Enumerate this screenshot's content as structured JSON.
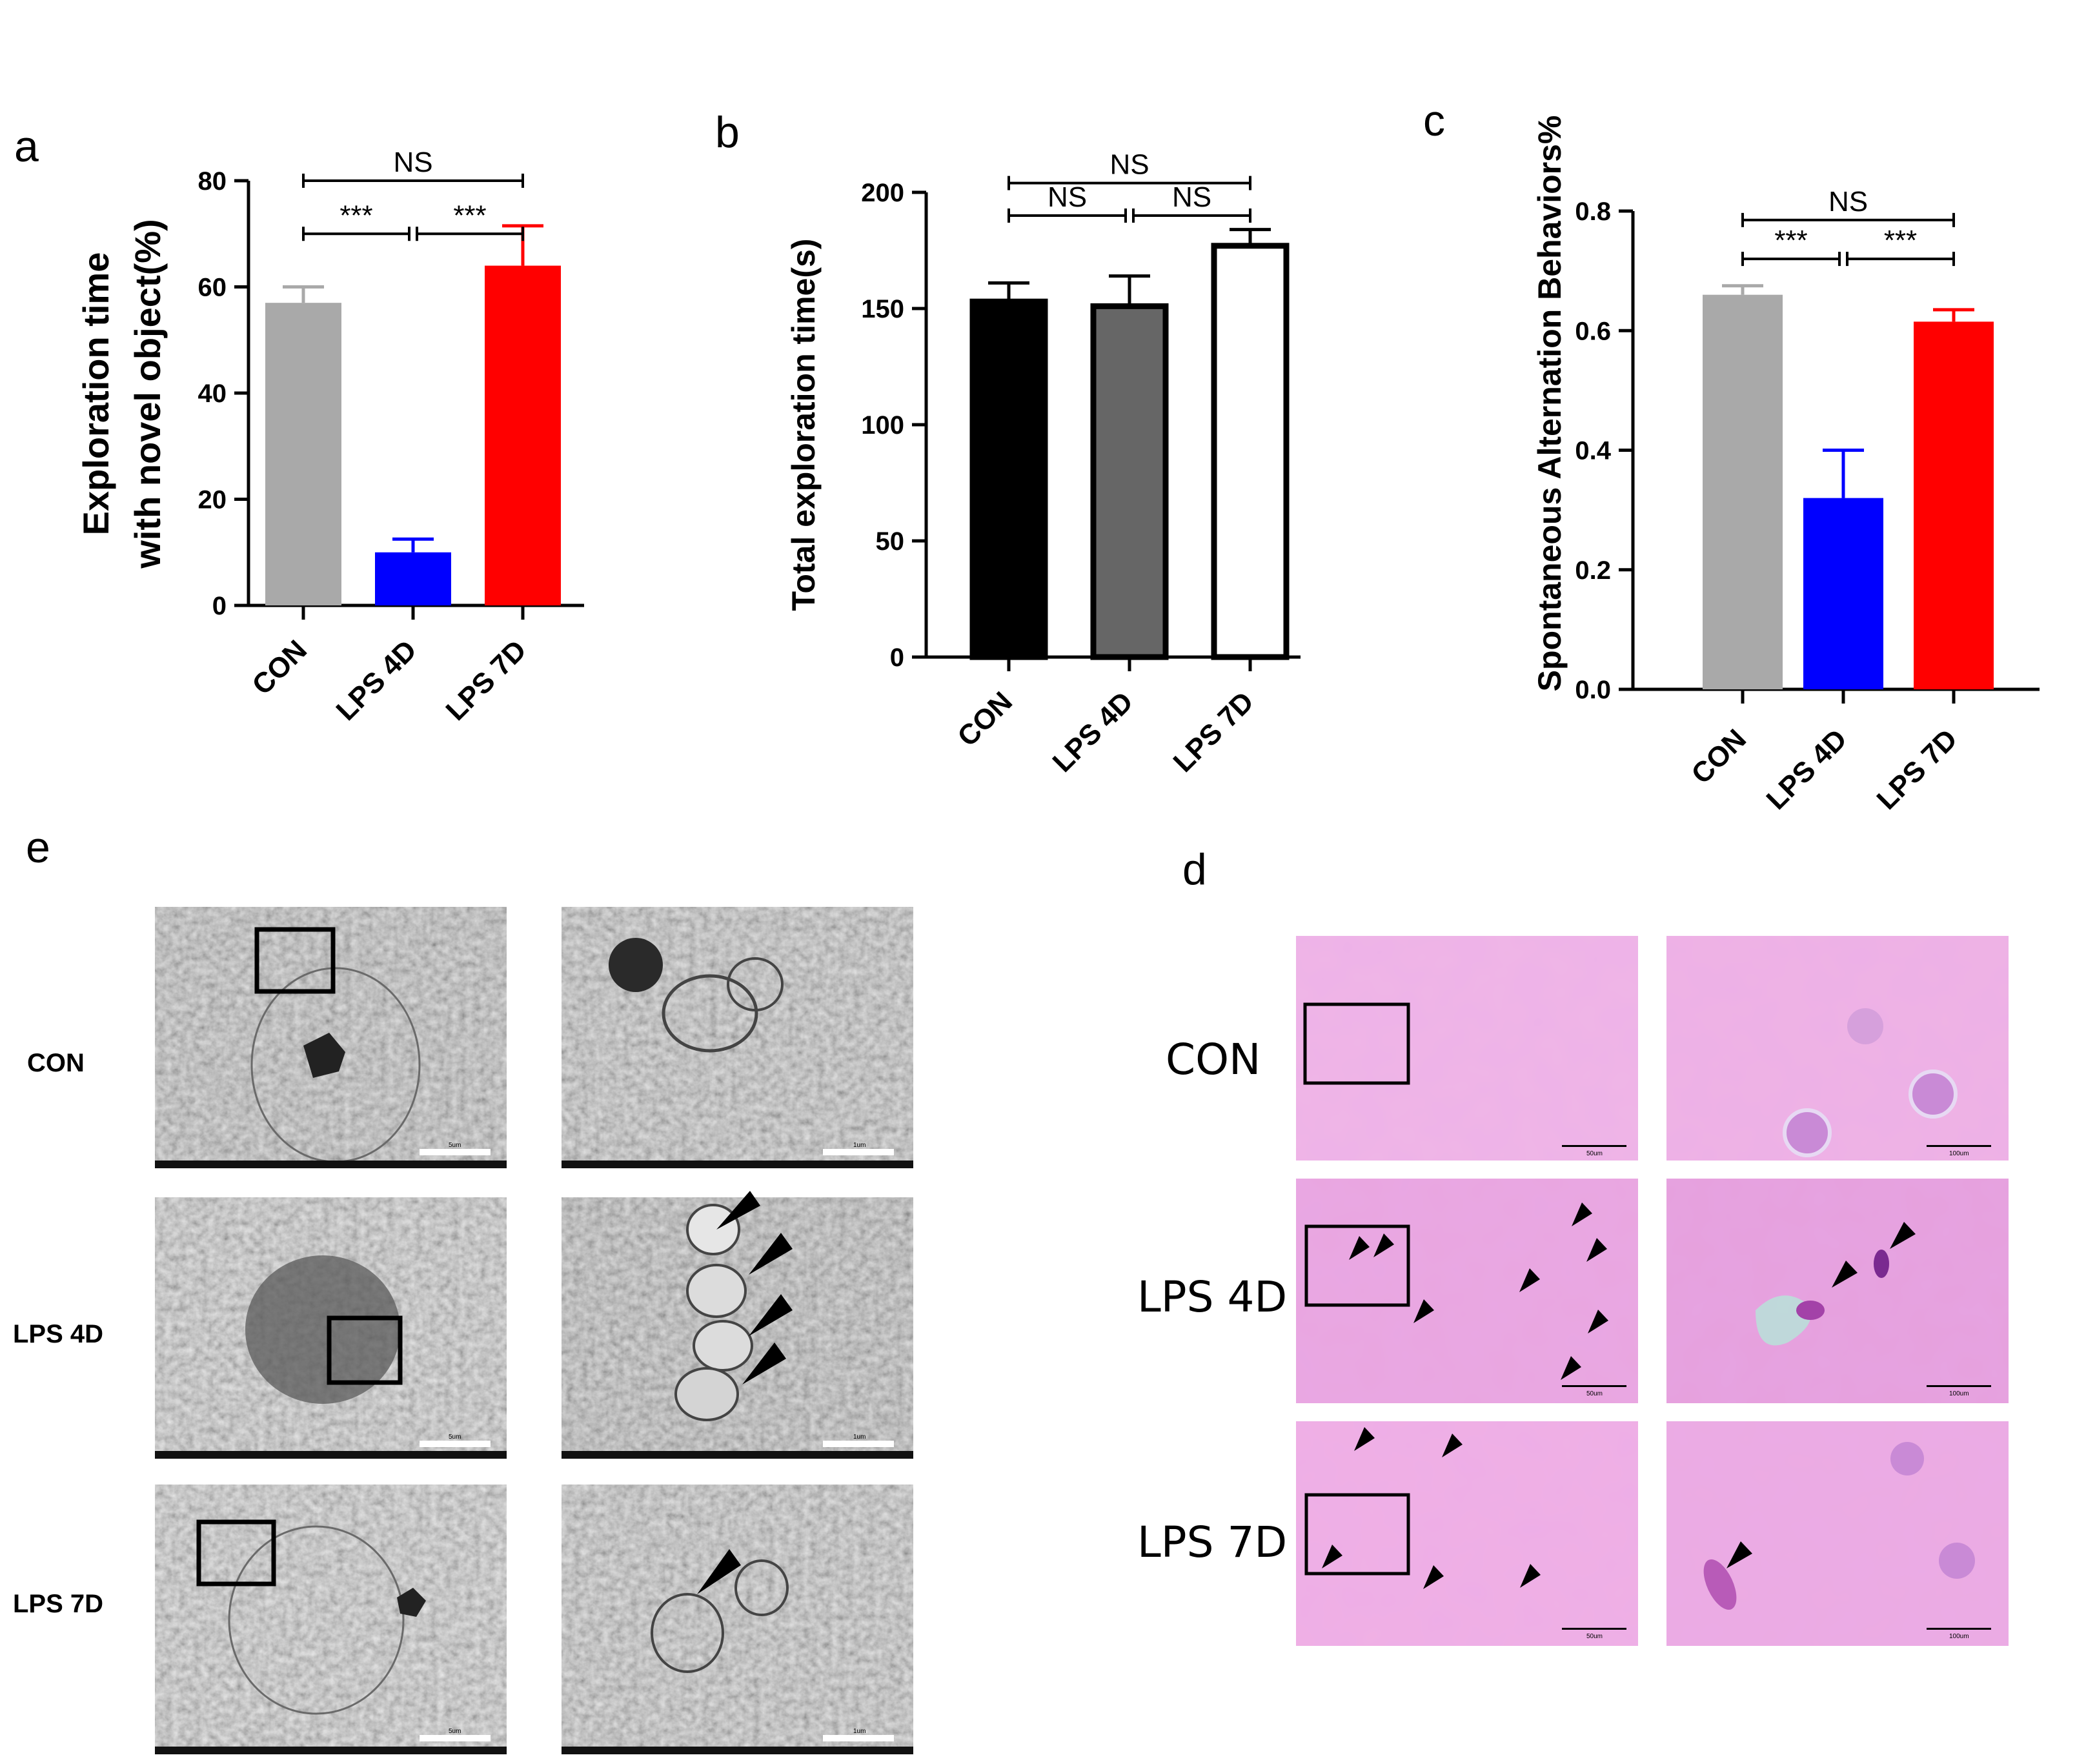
{
  "panels": {
    "a": "a",
    "b": "b",
    "c": "c",
    "d": "d",
    "e": "e"
  },
  "chart_data": [
    {
      "id": "a",
      "type": "bar",
      "title": "",
      "ylabel_line1": "Exploration time",
      "ylabel_line2": "with novel object(%)",
      "xlabel": "",
      "categories": [
        "CON",
        "LPS 4D",
        "LPS 7D"
      ],
      "values": [
        57,
        10,
        64
      ],
      "errors": [
        3,
        2.5,
        7.5
      ],
      "colors": [
        "#a9a9a9",
        "#0000ff",
        "#ff0000"
      ],
      "ylim": [
        0,
        80
      ],
      "yticks": [
        0,
        20,
        40,
        60,
        80
      ],
      "significance": [
        {
          "from": 0,
          "to": 1,
          "label": "***",
          "level": 70
        },
        {
          "from": 1,
          "to": 2,
          "label": "***",
          "level": 70
        },
        {
          "from": 0,
          "to": 2,
          "label": "NS",
          "level": 80
        }
      ]
    },
    {
      "id": "b",
      "type": "bar",
      "title": "",
      "ylabel": "Total exploration time(s)",
      "xlabel": "",
      "categories": [
        "CON",
        "LPS 4D",
        "LPS 7D"
      ],
      "values": [
        153,
        151,
        177
      ],
      "errors": [
        8,
        13,
        7
      ],
      "colors": [
        "#000000",
        "#666666",
        "#ffffff"
      ],
      "ylim": [
        0,
        200
      ],
      "yticks": [
        0,
        50,
        100,
        150,
        200
      ],
      "significance": [
        {
          "from": 0,
          "to": 1,
          "label": "NS",
          "level": 190
        },
        {
          "from": 1,
          "to": 2,
          "label": "NS",
          "level": 190
        },
        {
          "from": 0,
          "to": 2,
          "label": "NS",
          "level": 204
        }
      ]
    },
    {
      "id": "c",
      "type": "bar",
      "title": "",
      "ylabel": "Spontaneous Alternation Behaviors%",
      "xlabel": "",
      "categories": [
        "CON",
        "LPS 4D",
        "LPS 7D"
      ],
      "values": [
        0.66,
        0.32,
        0.615
      ],
      "errors": [
        0.015,
        0.08,
        0.02
      ],
      "colors": [
        "#a9a9a9",
        "#0000ff",
        "#ff0000"
      ],
      "ylim": [
        0,
        0.8
      ],
      "yticks": [
        "0.0",
        "0.2",
        "0.4",
        "0.6",
        "0.8"
      ],
      "significance": [
        {
          "from": 0,
          "to": 1,
          "label": "***",
          "level": 0.72
        },
        {
          "from": 1,
          "to": 2,
          "label": "***",
          "level": 0.72
        },
        {
          "from": 0,
          "to": 2,
          "label": "NS",
          "level": 0.785
        }
      ]
    }
  ],
  "panel_e": {
    "rows": [
      "CON",
      "LPS 4D",
      "LPS 7D"
    ],
    "scale_left": "5um",
    "scale_right": "1um"
  },
  "panel_d": {
    "rows": [
      "CON",
      "LPS 4D",
      "LPS 7D"
    ],
    "scale_left": "50um",
    "scale_right": "100um"
  }
}
